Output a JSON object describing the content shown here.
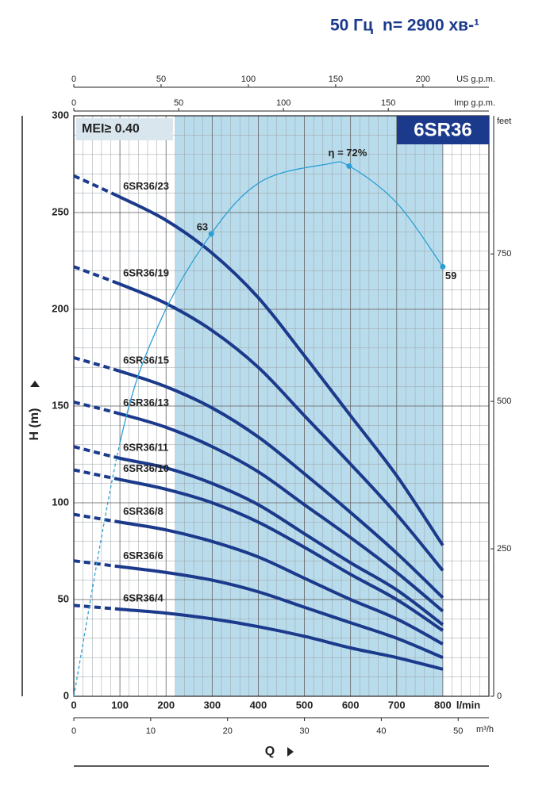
{
  "chart_data": {
    "type": "line",
    "title": "50 Гц",
    "subtitle": "n= 2900 хв-¹",
    "model": "6SR36",
    "mei": "MEI≥ 0.40",
    "ylabel": "H (m)",
    "xlabel": "Q",
    "x_unit": "l/min",
    "xlim": [
      0,
      900
    ],
    "ylim": [
      0,
      300
    ],
    "xticks": [
      0,
      100,
      200,
      300,
      400,
      500,
      600,
      700,
      800
    ],
    "yticks": [
      0,
      50,
      100,
      150,
      200,
      250,
      300
    ],
    "grid": true,
    "x_minor_step": 20,
    "y_minor_step": 10,
    "top_axes": [
      {
        "unit": "US g.p.m.",
        "lim": [
          0,
          237.8
        ],
        "ticks": [
          0,
          50,
          100,
          150,
          200
        ]
      },
      {
        "unit": "Imp g.p.m.",
        "lim": [
          0,
          198
        ],
        "ticks": [
          0,
          50,
          100,
          150
        ]
      }
    ],
    "bottom_axis": {
      "unit": "m³/h",
      "lim": [
        0,
        54
      ],
      "ticks": [
        0,
        10,
        20,
        30,
        40,
        50
      ]
    },
    "right_axis": {
      "unit": "feet",
      "lim": [
        0,
        984.25
      ],
      "ticks": [
        0,
        250,
        500,
        750
      ]
    },
    "shaded_range": [
      220,
      800
    ],
    "shade_color": "#b9dcec",
    "dashed_below": 100,
    "x": [
      0,
      100,
      200,
      300,
      400,
      500,
      600,
      700,
      800
    ],
    "series": [
      {
        "name": "6SR36/23",
        "color": "#1b3a8c",
        "values": [
          269,
          258,
          246,
          229,
          206,
          176,
          145,
          114,
          78
        ]
      },
      {
        "name": "6SR36/19",
        "color": "#1b3a8c",
        "values": [
          222,
          213,
          203,
          189,
          170,
          145,
          120,
          94,
          65
        ]
      },
      {
        "name": "6SR36/15",
        "color": "#1b3a8c",
        "values": [
          175,
          168,
          160,
          149,
          134,
          115,
          95,
          74,
          51
        ]
      },
      {
        "name": "6SR36/13",
        "color": "#1b3a8c",
        "values": [
          152,
          146,
          139,
          129,
          116,
          99,
          82,
          64,
          44
        ]
      },
      {
        "name": "6SR36/11",
        "color": "#1b3a8c",
        "values": [
          129,
          123,
          118,
          110,
          99,
          84,
          69,
          55,
          37
        ]
      },
      {
        "name": "6SR36/10",
        "color": "#1b3a8c",
        "values": [
          117,
          112,
          107,
          100,
          90,
          77,
          63,
          50,
          34
        ]
      },
      {
        "name": "6SR36/8",
        "color": "#1b3a8c",
        "values": [
          94,
          90,
          86,
          80,
          72,
          61,
          50,
          40,
          27
        ]
      },
      {
        "name": "6SR36/6",
        "color": "#1b3a8c",
        "values": [
          70,
          67,
          64,
          60,
          54,
          46,
          38,
          30,
          20
        ]
      },
      {
        "name": "6SR36/4",
        "color": "#1b3a8c",
        "values": [
          47,
          45,
          43,
          40,
          36,
          31,
          25,
          20,
          14
        ]
      }
    ],
    "efficiency": {
      "color": "#2a9fd6",
      "x": [
        0,
        100,
        184,
        298,
        406,
        549,
        597,
        700,
        800
      ],
      "values": [
        0,
        131,
        192,
        239,
        266,
        275,
        274,
        255,
        222
      ],
      "labels": [
        null,
        null,
        null,
        "63",
        null,
        null,
        "η = 72%",
        null,
        "59"
      ]
    }
  }
}
